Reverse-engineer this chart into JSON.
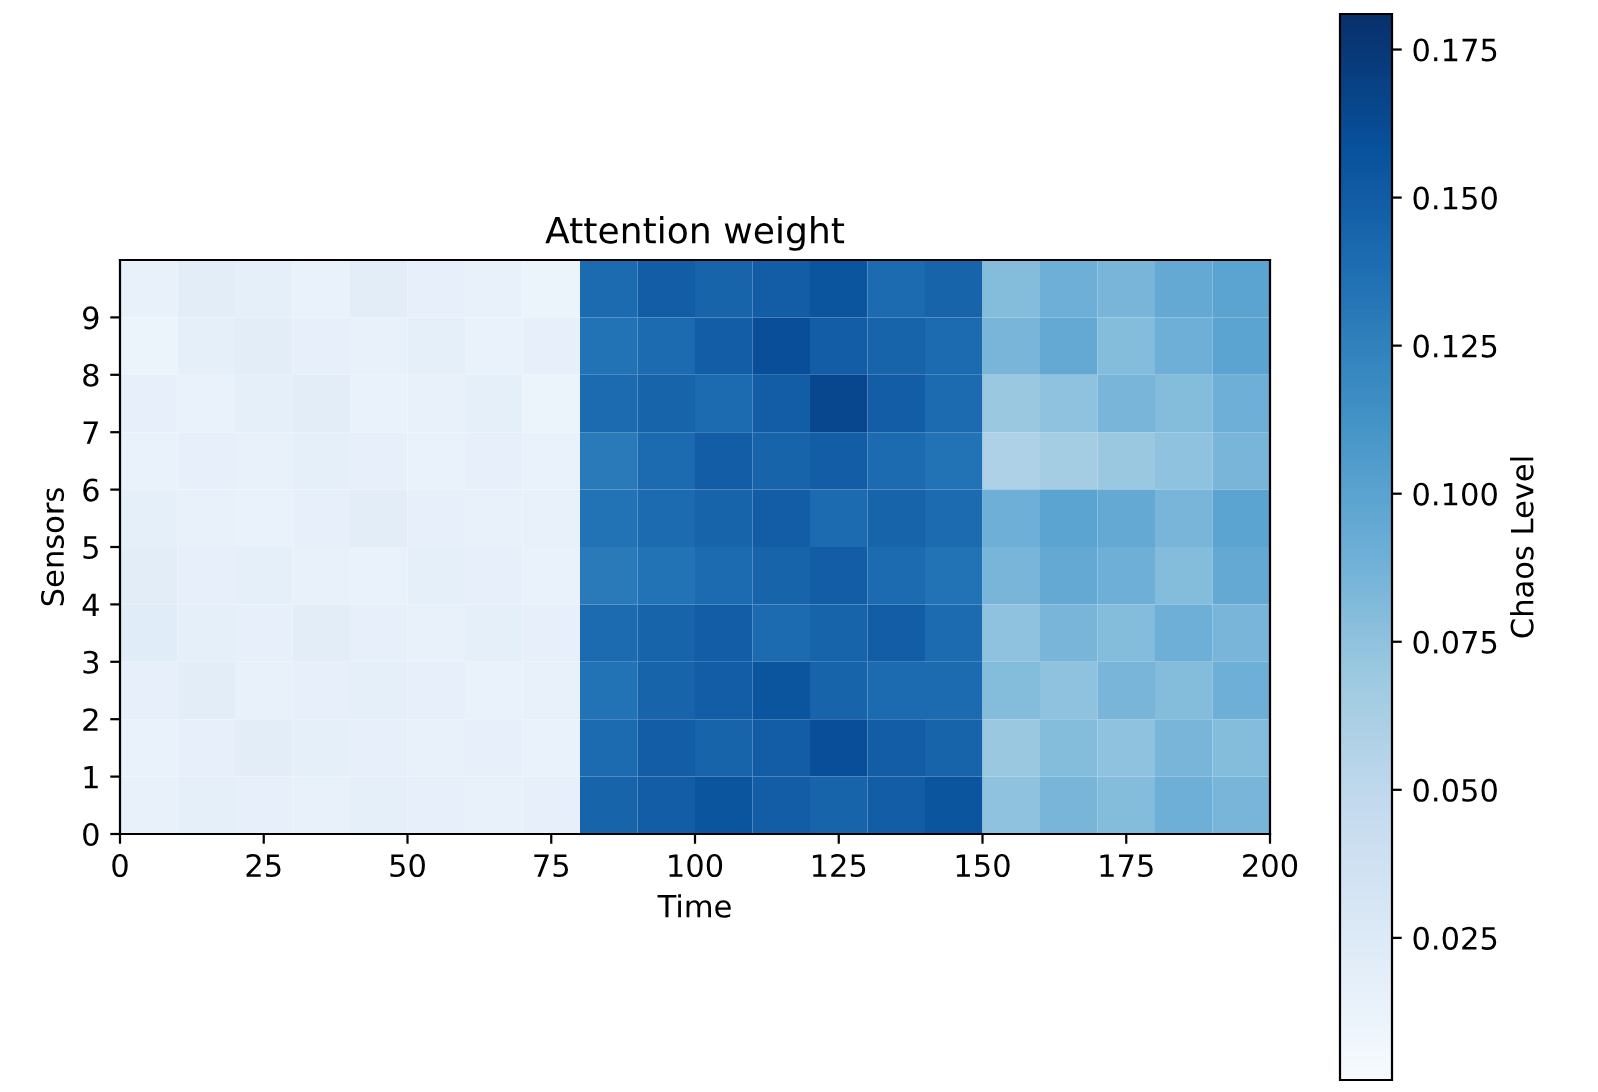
{
  "chart_data": {
    "type": "heatmap",
    "title": "Attention weight",
    "xlabel": "Time",
    "ylabel": "Sensors",
    "clabel": "Chaos Level",
    "xlim": [
      0,
      200
    ],
    "xticks": [
      0,
      25,
      50,
      75,
      100,
      125,
      150,
      175,
      200
    ],
    "ylim": [
      0,
      10
    ],
    "yticks": [
      0,
      1,
      2,
      3,
      4,
      5,
      6,
      7,
      8,
      9
    ],
    "clim": [
      0.001,
      0.181
    ],
    "cticks": [
      0.025,
      {
        "value": 0.05,
        "label": "0.050"
      },
      0.075,
      {
        "value": 0.1,
        "label": "0.100"
      },
      0.125,
      {
        "value": 0.15,
        "label": "0.150"
      },
      0.175
    ],
    "cells": [
      [
        0.015,
        0.02,
        0.018,
        0.014,
        0.02,
        0.016,
        0.015,
        0.012,
        0.14,
        0.15,
        0.145,
        0.15,
        0.155,
        0.14,
        0.145,
        0.08,
        0.09,
        0.085,
        0.095,
        0.1
      ],
      [
        0.012,
        0.018,
        0.02,
        0.016,
        0.015,
        0.018,
        0.014,
        0.016,
        0.135,
        0.14,
        0.15,
        0.16,
        0.15,
        0.145,
        0.14,
        0.085,
        0.095,
        0.08,
        0.09,
        0.1
      ],
      [
        0.016,
        0.014,
        0.018,
        0.02,
        0.014,
        0.015,
        0.018,
        0.012,
        0.14,
        0.145,
        0.14,
        0.15,
        0.165,
        0.15,
        0.14,
        0.07,
        0.075,
        0.085,
        0.08,
        0.09
      ],
      [
        0.014,
        0.016,
        0.015,
        0.018,
        0.016,
        0.014,
        0.016,
        0.014,
        0.13,
        0.14,
        0.15,
        0.145,
        0.15,
        0.14,
        0.135,
        0.06,
        0.065,
        0.07,
        0.075,
        0.085
      ],
      [
        0.018,
        0.015,
        0.014,
        0.016,
        0.02,
        0.016,
        0.015,
        0.015,
        0.135,
        0.14,
        0.145,
        0.15,
        0.14,
        0.145,
        0.14,
        0.09,
        0.1,
        0.095,
        0.085,
        0.1
      ],
      [
        0.02,
        0.016,
        0.018,
        0.015,
        0.014,
        0.018,
        0.016,
        0.014,
        0.13,
        0.135,
        0.14,
        0.145,
        0.15,
        0.14,
        0.135,
        0.085,
        0.095,
        0.09,
        0.08,
        0.095
      ],
      [
        0.022,
        0.018,
        0.016,
        0.02,
        0.016,
        0.015,
        0.018,
        0.016,
        0.14,
        0.145,
        0.15,
        0.14,
        0.145,
        0.15,
        0.14,
        0.075,
        0.085,
        0.08,
        0.09,
        0.085
      ],
      [
        0.016,
        0.02,
        0.015,
        0.016,
        0.018,
        0.016,
        0.014,
        0.015,
        0.135,
        0.145,
        0.15,
        0.155,
        0.145,
        0.14,
        0.14,
        0.08,
        0.075,
        0.085,
        0.08,
        0.09
      ],
      [
        0.014,
        0.016,
        0.02,
        0.018,
        0.016,
        0.015,
        0.016,
        0.014,
        0.14,
        0.15,
        0.145,
        0.15,
        0.16,
        0.15,
        0.145,
        0.07,
        0.08,
        0.075,
        0.085,
        0.08
      ],
      [
        0.015,
        0.018,
        0.016,
        0.015,
        0.018,
        0.016,
        0.015,
        0.016,
        0.145,
        0.15,
        0.155,
        0.15,
        0.145,
        0.15,
        0.155,
        0.075,
        0.085,
        0.08,
        0.09,
        0.085
      ]
    ]
  }
}
